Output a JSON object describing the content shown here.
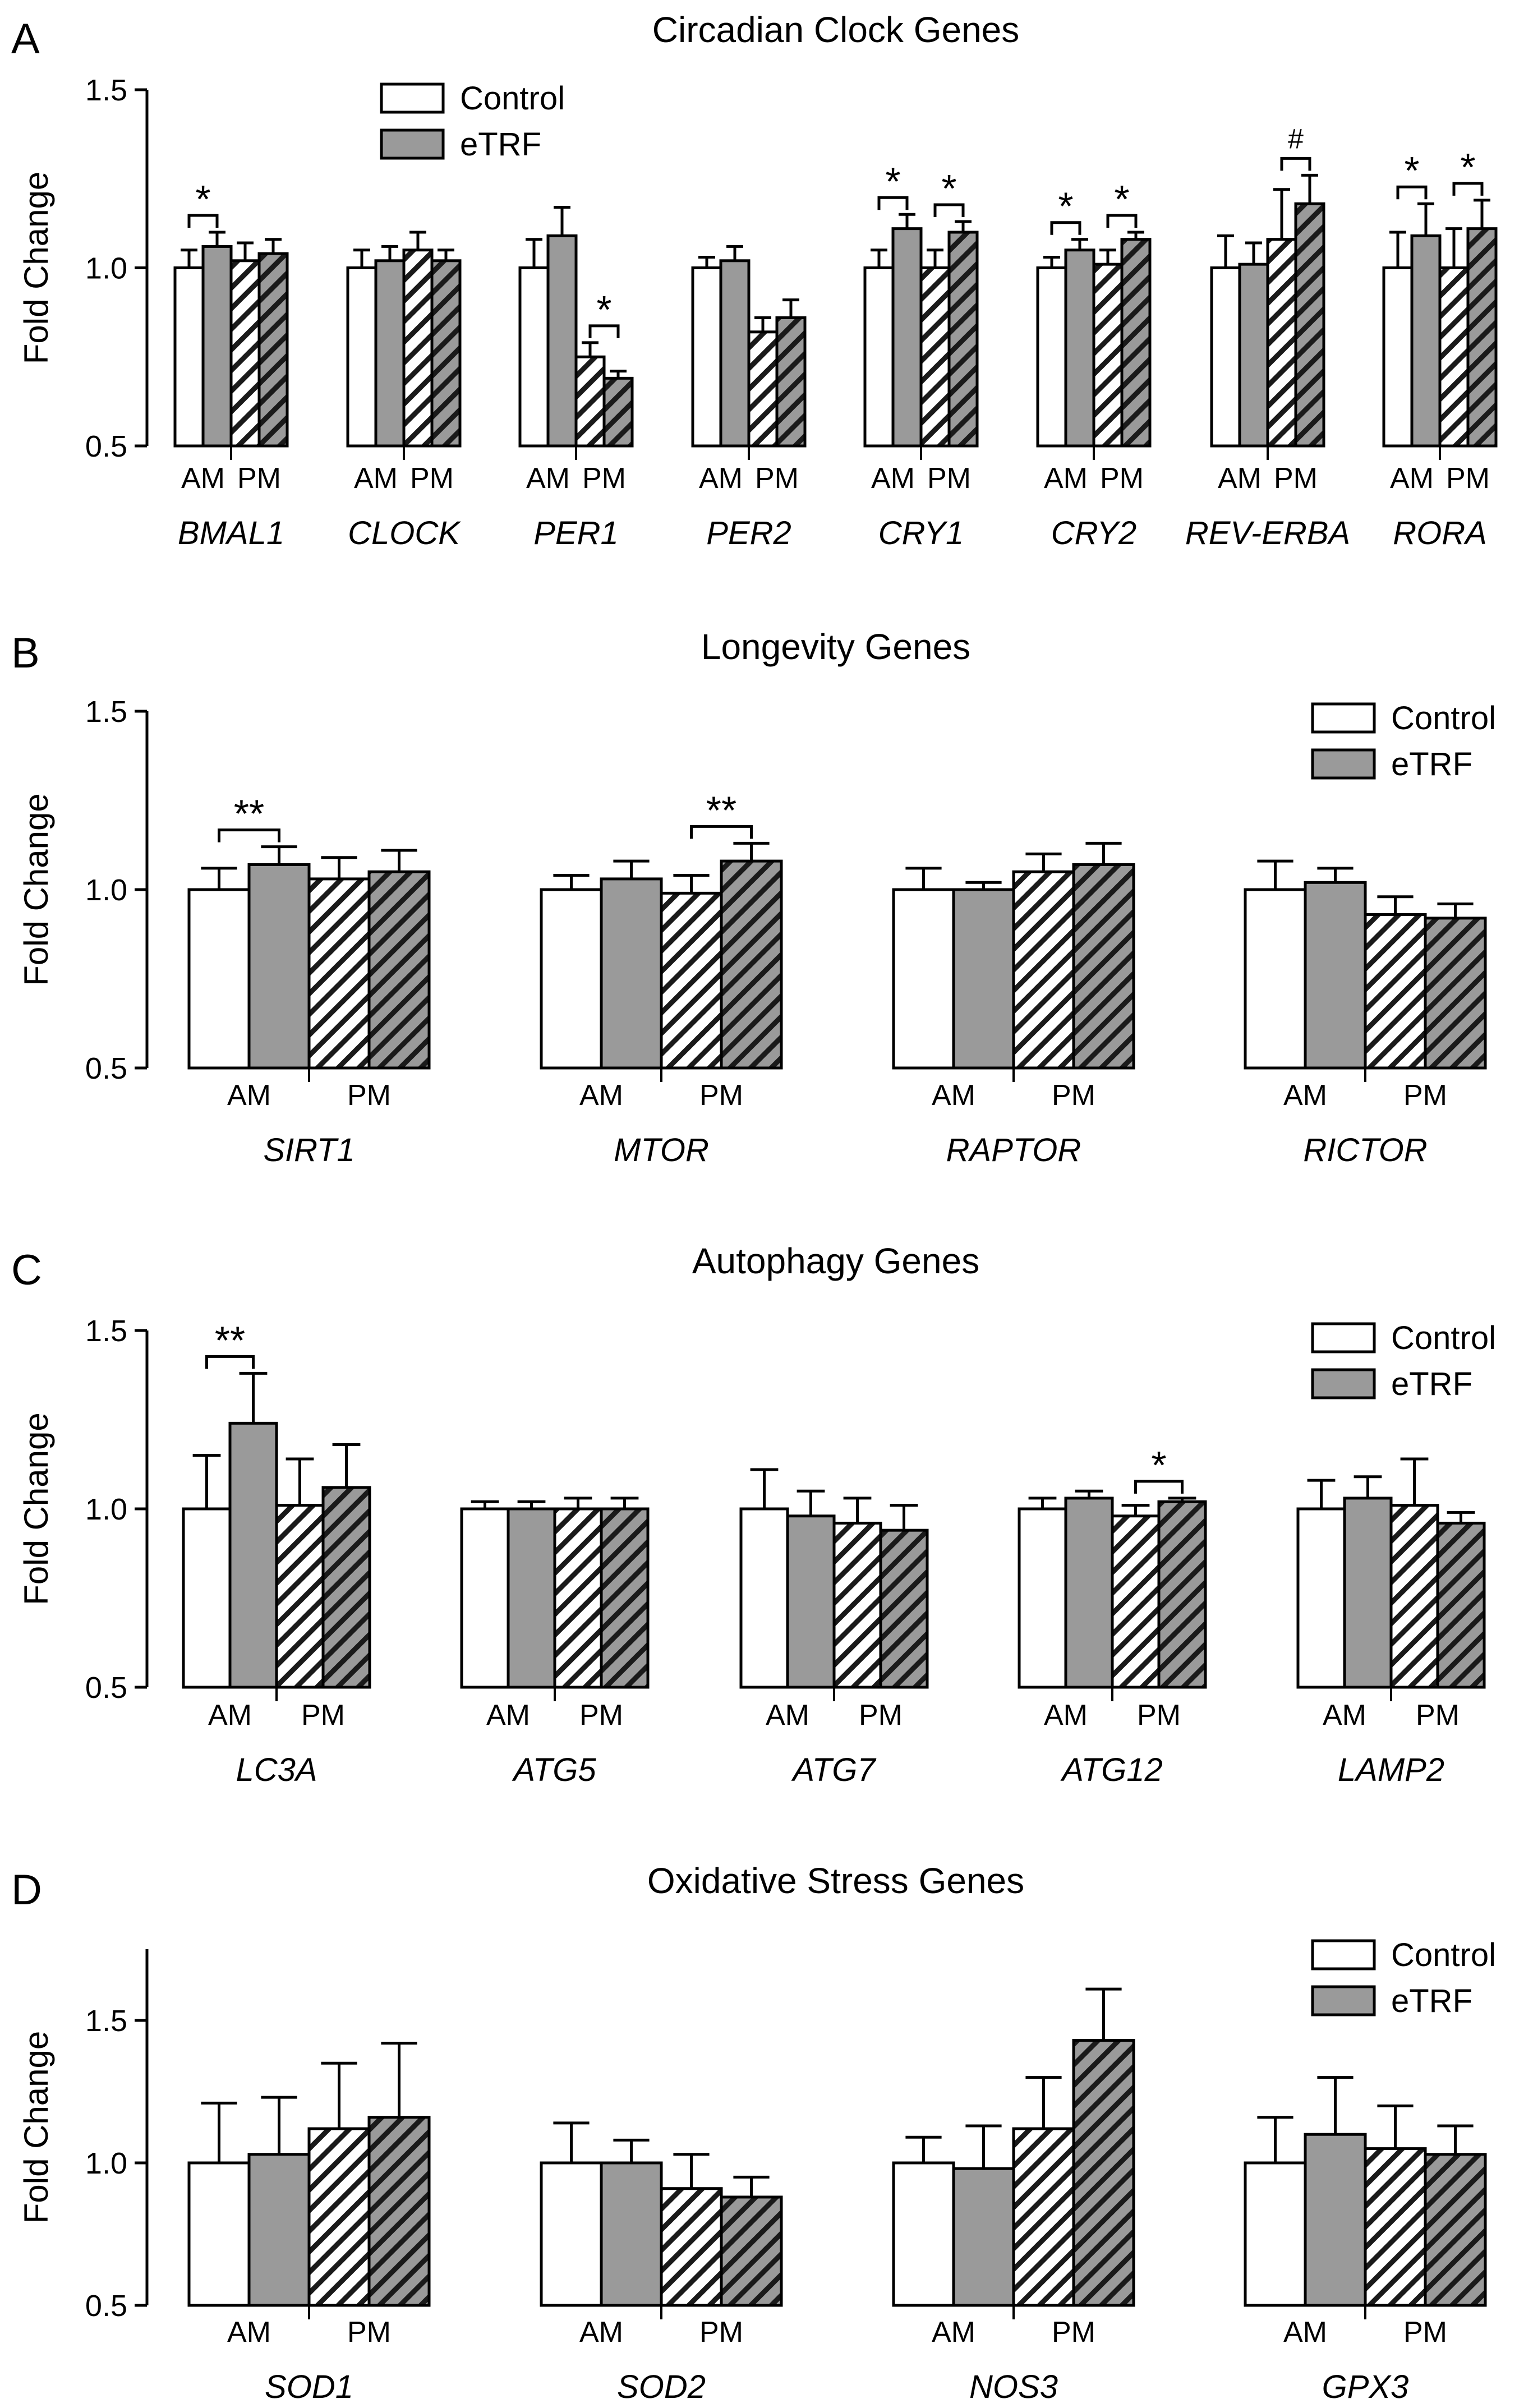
{
  "chart_data": [
    {
      "type": "bar",
      "panel": "A",
      "title": "Circadian Clock Genes",
      "ylabel": "Fold Change",
      "ylim": [
        0.5,
        1.5
      ],
      "yticks": [
        "0.5",
        "1.0",
        "1.5"
      ],
      "grid": false,
      "legend": {
        "placement": "top-center",
        "entries": [
          "Control",
          "eTRF"
        ]
      },
      "sublabels": {
        "am": "AM",
        "pm": "PM"
      },
      "series_order": [
        "Control AM",
        "eTRF AM",
        "Control PM",
        "eTRF PM"
      ],
      "genes": [
        {
          "name": "BMAL1",
          "values": [
            1.0,
            1.06,
            1.02,
            1.04
          ],
          "errors": [
            0.05,
            0.04,
            0.05,
            0.04
          ],
          "sig": [
            {
              "pair": "am",
              "label": "*"
            }
          ]
        },
        {
          "name": "CLOCK",
          "values": [
            1.0,
            1.02,
            1.05,
            1.02
          ],
          "errors": [
            0.05,
            0.04,
            0.05,
            0.03
          ],
          "sig": []
        },
        {
          "name": "PER1",
          "values": [
            1.0,
            1.09,
            0.75,
            0.69
          ],
          "errors": [
            0.08,
            0.08,
            0.04,
            0.02
          ],
          "sig": [
            {
              "pair": "pm",
              "label": "*"
            }
          ]
        },
        {
          "name": "PER2",
          "values": [
            1.0,
            1.02,
            0.82,
            0.86
          ],
          "errors": [
            0.03,
            0.04,
            0.04,
            0.05
          ],
          "sig": []
        },
        {
          "name": "CRY1",
          "values": [
            1.0,
            1.11,
            1.0,
            1.1
          ],
          "errors": [
            0.05,
            0.04,
            0.05,
            0.03
          ],
          "sig": [
            {
              "pair": "am",
              "label": "*"
            },
            {
              "pair": "pm",
              "label": "*"
            }
          ]
        },
        {
          "name": "CRY2",
          "values": [
            1.0,
            1.05,
            1.01,
            1.08
          ],
          "errors": [
            0.03,
            0.03,
            0.04,
            0.02
          ],
          "sig": [
            {
              "pair": "am",
              "label": "*"
            },
            {
              "pair": "pm",
              "label": "*"
            }
          ]
        },
        {
          "name": "REV-ERBA",
          "values": [
            1.0,
            1.01,
            1.08,
            1.18
          ],
          "errors": [
            0.09,
            0.06,
            0.14,
            0.08
          ],
          "sig": [
            {
              "pair": "pm",
              "label": "#"
            }
          ]
        },
        {
          "name": "RORA",
          "values": [
            1.0,
            1.09,
            1.0,
            1.11
          ],
          "errors": [
            0.1,
            0.09,
            0.11,
            0.08
          ],
          "sig": [
            {
              "pair": "am",
              "label": "*"
            },
            {
              "pair": "pm",
              "label": "*"
            }
          ]
        }
      ]
    },
    {
      "type": "bar",
      "panel": "B",
      "title": "Longevity Genes",
      "ylabel": "Fold Change",
      "ylim": [
        0.5,
        1.5
      ],
      "yticks": [
        "0.5",
        "1.0",
        "1.5"
      ],
      "grid": false,
      "legend": {
        "placement": "top-right",
        "entries": [
          "Control",
          "eTRF"
        ]
      },
      "sublabels": {
        "am": "AM",
        "pm": "PM"
      },
      "series_order": [
        "Control AM",
        "eTRF AM",
        "Control PM",
        "eTRF PM"
      ],
      "genes": [
        {
          "name": "SIRT1",
          "values": [
            1.0,
            1.07,
            1.03,
            1.05
          ],
          "errors": [
            0.06,
            0.05,
            0.06,
            0.06
          ],
          "sig": [
            {
              "pair": "am",
              "label": "**"
            }
          ]
        },
        {
          "name": "MTOR",
          "values": [
            1.0,
            1.03,
            0.99,
            1.08
          ],
          "errors": [
            0.04,
            0.05,
            0.05,
            0.05
          ],
          "sig": [
            {
              "pair": "pm",
              "label": "**"
            }
          ]
        },
        {
          "name": "RAPTOR",
          "values": [
            1.0,
            1.0,
            1.05,
            1.07
          ],
          "errors": [
            0.06,
            0.02,
            0.05,
            0.06
          ],
          "sig": []
        },
        {
          "name": "RICTOR",
          "values": [
            1.0,
            1.02,
            0.93,
            0.92
          ],
          "errors": [
            0.08,
            0.04,
            0.05,
            0.04
          ],
          "sig": []
        }
      ]
    },
    {
      "type": "bar",
      "panel": "C",
      "title": "Autophagy Genes",
      "ylabel": "Fold Change",
      "ylim": [
        0.5,
        1.5
      ],
      "yticks": [
        "0.5",
        "1.0",
        "1.5"
      ],
      "grid": false,
      "legend": {
        "placement": "top-right",
        "entries": [
          "Control",
          "eTRF"
        ]
      },
      "sublabels": {
        "am": "AM",
        "pm": "PM"
      },
      "series_order": [
        "Control AM",
        "eTRF AM",
        "Control PM",
        "eTRF PM"
      ],
      "genes": [
        {
          "name": "LC3A",
          "values": [
            1.0,
            1.24,
            1.01,
            1.06
          ],
          "errors": [
            0.15,
            0.14,
            0.13,
            0.12
          ],
          "sig": [
            {
              "pair": "am",
              "label": "**"
            }
          ]
        },
        {
          "name": "ATG5",
          "values": [
            1.0,
            1.0,
            1.0,
            1.0
          ],
          "errors": [
            0.02,
            0.02,
            0.03,
            0.03
          ],
          "sig": []
        },
        {
          "name": "ATG7",
          "values": [
            1.0,
            0.98,
            0.96,
            0.94
          ],
          "errors": [
            0.11,
            0.07,
            0.07,
            0.07
          ],
          "sig": []
        },
        {
          "name": "ATG12",
          "values": [
            1.0,
            1.03,
            0.98,
            1.02
          ],
          "errors": [
            0.03,
            0.02,
            0.03,
            0.01
          ],
          "sig": [
            {
              "pair": "pm",
              "label": "*"
            }
          ]
        },
        {
          "name": "LAMP2",
          "values": [
            1.0,
            1.03,
            1.01,
            0.96
          ],
          "errors": [
            0.08,
            0.06,
            0.13,
            0.03
          ],
          "sig": []
        }
      ]
    },
    {
      "type": "bar",
      "panel": "D",
      "title": "Oxidative Stress Genes",
      "ylabel": "Fold Change",
      "ylim": [
        0.5,
        1.75
      ],
      "yticks": [
        "0.5",
        "1.0",
        "1.5"
      ],
      "grid": false,
      "legend": {
        "placement": "top-right",
        "entries": [
          "Control",
          "eTRF"
        ]
      },
      "sublabels": {
        "am": "AM",
        "pm": "PM"
      },
      "series_order": [
        "Control AM",
        "eTRF AM",
        "Control PM",
        "eTRF PM"
      ],
      "genes": [
        {
          "name": "SOD1",
          "values": [
            1.0,
            1.03,
            1.12,
            1.16
          ],
          "errors": [
            0.21,
            0.2,
            0.23,
            0.26
          ],
          "sig": []
        },
        {
          "name": "SOD2",
          "values": [
            1.0,
            1.0,
            0.91,
            0.88
          ],
          "errors": [
            0.14,
            0.08,
            0.12,
            0.07
          ],
          "sig": []
        },
        {
          "name": "NOS3",
          "values": [
            1.0,
            0.98,
            1.12,
            1.43
          ],
          "errors": [
            0.09,
            0.15,
            0.18,
            0.18
          ],
          "sig": []
        },
        {
          "name": "GPX3",
          "values": [
            1.0,
            1.1,
            1.05,
            1.03
          ],
          "errors": [
            0.16,
            0.2,
            0.15,
            0.1
          ],
          "sig": []
        }
      ]
    }
  ]
}
